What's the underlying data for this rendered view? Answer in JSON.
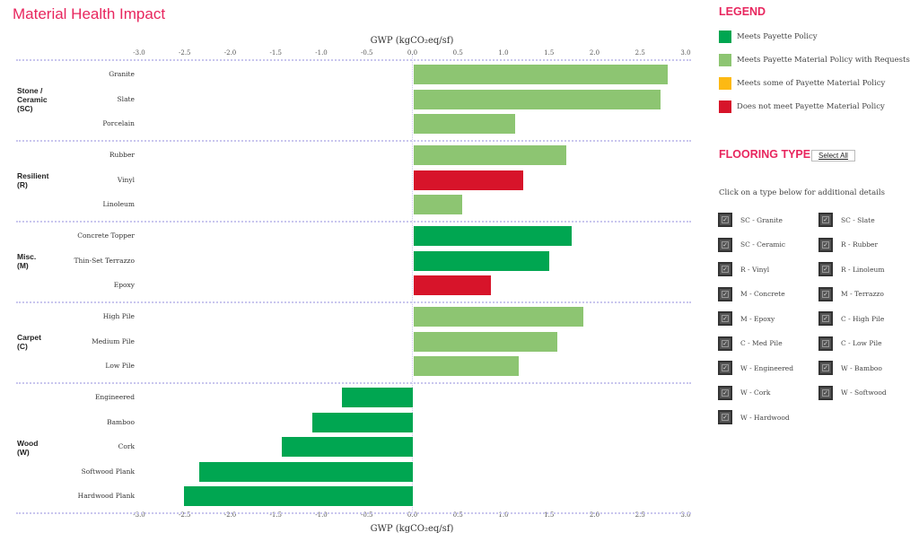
{
  "title": "Material Health Impact",
  "chart_data": {
    "type": "bar",
    "orientation": "horizontal",
    "xlabel": "GWP (kgCO₂eq/sf)",
    "xlim": [
      -3.0,
      3.0
    ],
    "ticks": [
      "-3.0",
      "-2.5",
      "-2.0",
      "-1.5",
      "-1.0",
      "-0.5",
      "0.0",
      "0.5",
      "1.0",
      "1.5",
      "2.0",
      "2.5",
      "3.0"
    ],
    "groups": [
      {
        "label": "Stone /\nCeramic\n(SC)",
        "items": [
          {
            "name": "Granite",
            "value": 2.79,
            "status": "requests"
          },
          {
            "name": "Slate",
            "value": 2.71,
            "status": "requests"
          },
          {
            "name": "Porcelain",
            "value": 1.12,
            "status": "requests"
          }
        ]
      },
      {
        "label": "Resilient\n(R)",
        "items": [
          {
            "name": "Rubber",
            "value": 1.68,
            "status": "requests"
          },
          {
            "name": "Vinyl",
            "value": 1.21,
            "status": "not"
          },
          {
            "name": "Linoleum",
            "value": 0.54,
            "status": "requests"
          }
        ]
      },
      {
        "label": "Misc.\n(M)",
        "items": [
          {
            "name": "Concrete Topper",
            "value": 1.74,
            "status": "meets"
          },
          {
            "name": "Thin-Set Terrazzo",
            "value": 1.49,
            "status": "meets"
          },
          {
            "name": "Epoxy",
            "value": 0.85,
            "status": "not"
          }
        ]
      },
      {
        "label": "Carpet\n(C)",
        "items": [
          {
            "name": "High Pile",
            "value": 1.87,
            "status": "requests"
          },
          {
            "name": "Medium Pile",
            "value": 1.58,
            "status": "requests"
          },
          {
            "name": "Low Pile",
            "value": 1.16,
            "status": "requests"
          }
        ]
      },
      {
        "label": "Wood\n(W)",
        "items": [
          {
            "name": "Engineered",
            "value": -0.78,
            "status": "meets"
          },
          {
            "name": "Bamboo",
            "value": -1.11,
            "status": "meets"
          },
          {
            "name": "Cork",
            "value": -1.44,
            "status": "meets"
          },
          {
            "name": "Softwood Plank",
            "value": -2.35,
            "status": "meets"
          },
          {
            "name": "Hardwood Plank",
            "value": -2.52,
            "status": "meets"
          }
        ]
      }
    ],
    "colors": {
      "meets": "#00a651",
      "requests": "#8dc572",
      "some": "#fdb913",
      "not": "#d7142a"
    }
  },
  "legend": {
    "title": "LEGEND",
    "items": [
      {
        "label": "Meets Payette Policy",
        "color": "#00a651"
      },
      {
        "label": "Meets Payette Material Policy with Requests",
        "color": "#8dc572"
      },
      {
        "label": "Meets some of Payette Material Policy",
        "color": "#fdb913"
      },
      {
        "label": "Does not meet Payette Material Policy",
        "color": "#d7142a"
      }
    ]
  },
  "flooring": {
    "title": "FLOORING TYPE",
    "select_all": "Select All",
    "hint": "Click on a type below for additional details",
    "options": [
      {
        "label": "SC - Granite",
        "checked": true
      },
      {
        "label": "SC - Slate",
        "checked": true
      },
      {
        "label": "SC - Ceramic",
        "checked": true
      },
      {
        "label": "R - Rubber",
        "checked": true
      },
      {
        "label": "R - Vinyl",
        "checked": true
      },
      {
        "label": "R - Linoleum",
        "checked": true
      },
      {
        "label": "M - Concrete",
        "checked": true
      },
      {
        "label": "M - Terrazzo",
        "checked": true
      },
      {
        "label": "M - Epoxy",
        "checked": true
      },
      {
        "label": "C - High Pile",
        "checked": true
      },
      {
        "label": "C - Med Pile",
        "checked": true
      },
      {
        "label": "C - Low Pile",
        "checked": true
      },
      {
        "label": "W - Engineered",
        "checked": true
      },
      {
        "label": "W - Bamboo",
        "checked": true
      },
      {
        "label": "W - Cork",
        "checked": true
      },
      {
        "label": "W - Softwood",
        "checked": true
      },
      {
        "label": "W - Hardwood",
        "checked": true
      }
    ]
  }
}
